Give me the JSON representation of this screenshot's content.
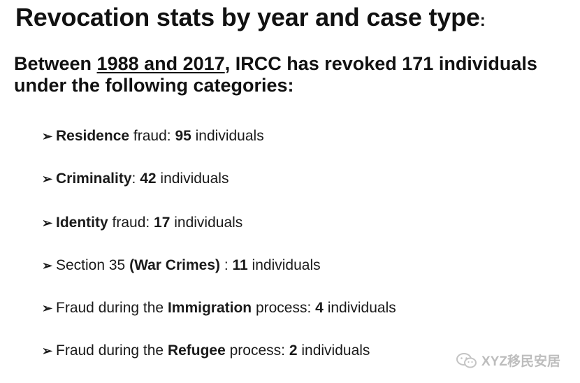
{
  "title": {
    "text": "Revocation stats by year and case type",
    "colon": ":"
  },
  "intro": {
    "before": "Between ",
    "years": "1988 and 2017",
    "after": ", IRCC has revoked 171 individuals under the following categories:"
  },
  "bullets": [
    {
      "pre": "",
      "bold": "Residence",
      "mid": " fraud: ",
      "count": "95",
      "post": " individuals"
    },
    {
      "pre": "",
      "bold": "Criminality",
      "mid": ": ",
      "count": "42",
      "post": " individuals"
    },
    {
      "pre": "",
      "bold": "Identity",
      "mid": " fraud: ",
      "count": "17",
      "post": " individuals"
    },
    {
      "pre": "Section 35 ",
      "bold": "(War Crimes)",
      "mid": " : ",
      "count": "11",
      "post": " individuals"
    },
    {
      "pre": "Fraud during the ",
      "bold": "Immigration",
      "mid": " process: ",
      "count": "4",
      "post": " individuals"
    },
    {
      "pre": "Fraud during the ",
      "bold": "Refugee",
      "mid": " process: ",
      "count": "2",
      "post": " individuals"
    }
  ],
  "watermark": {
    "icon": "wechat-icon",
    "text": "XYZ移民安居"
  }
}
